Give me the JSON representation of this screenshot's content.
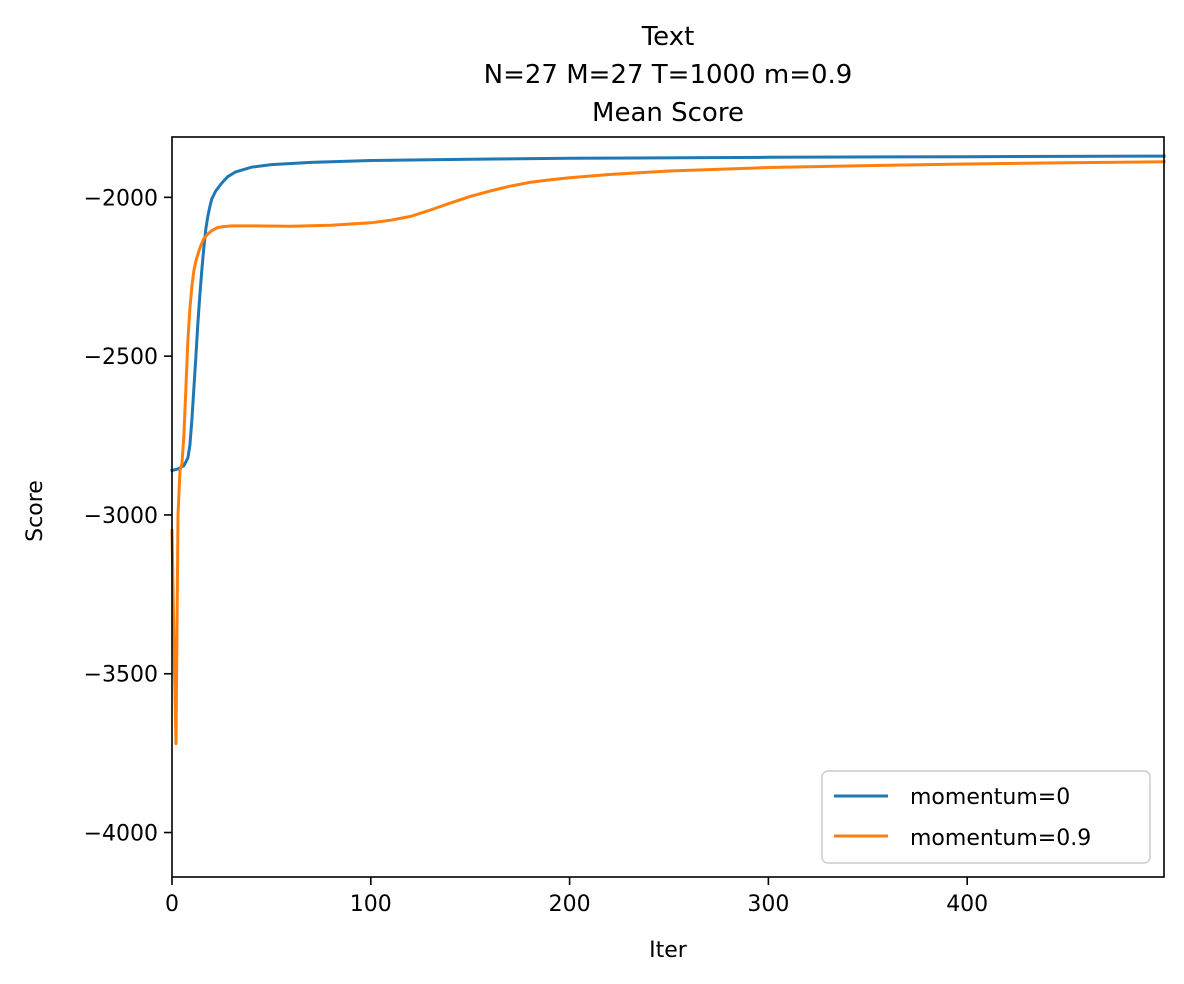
{
  "chart_data": {
    "type": "line",
    "title": [
      "Text",
      "N=27 M=27 T=1000 m=0.9",
      "Mean Score"
    ],
    "xlabel": "Iter",
    "ylabel": "Score",
    "xlim": [
      0,
      499
    ],
    "ylim": [
      -4140,
      -1810
    ],
    "xticks": [
      0,
      100,
      200,
      300,
      400
    ],
    "yticks": [
      -2000,
      -2500,
      -3000,
      -3500,
      -4000
    ],
    "xtick_labels": [
      "0",
      "100",
      "200",
      "300",
      "400"
    ],
    "ytick_labels": [
      "−2000",
      "−2500",
      "−3000",
      "−3500",
      "−4000"
    ],
    "grid": false,
    "legend_position": "lower right",
    "series": [
      {
        "name": "momentum=0",
        "color": "#1f77b4",
        "x": [
          0,
          3,
          6,
          8,
          9,
          10,
          11,
          12,
          13,
          14,
          15,
          16,
          17,
          18,
          19,
          20,
          22,
          25,
          28,
          32,
          40,
          50,
          70,
          100,
          150,
          200,
          300,
          400,
          499
        ],
        "y": [
          -2860,
          -2855,
          -2845,
          -2820,
          -2780,
          -2700,
          -2600,
          -2500,
          -2400,
          -2310,
          -2230,
          -2160,
          -2100,
          -2060,
          -2030,
          -2005,
          -1980,
          -1955,
          -1935,
          -1920,
          -1905,
          -1897,
          -1890,
          -1884,
          -1880,
          -1877,
          -1874,
          -1872,
          -1870
        ]
      },
      {
        "name": "momentum=0.9",
        "color": "#ff7f0e",
        "x": [
          0,
          1,
          2,
          3,
          4,
          5,
          6,
          7,
          8,
          9,
          10,
          11,
          12,
          14,
          16,
          18,
          20,
          23,
          26,
          30,
          40,
          60,
          80,
          100,
          110,
          120,
          130,
          140,
          150,
          160,
          170,
          180,
          190,
          200,
          220,
          250,
          300,
          350,
          400,
          450,
          499
        ],
        "y": [
          -3050,
          -3400,
          -3720,
          -3000,
          -2860,
          -2840,
          -2750,
          -2600,
          -2450,
          -2350,
          -2280,
          -2230,
          -2200,
          -2160,
          -2130,
          -2115,
          -2105,
          -2095,
          -2092,
          -2090,
          -2090,
          -2091,
          -2088,
          -2080,
          -2072,
          -2060,
          -2040,
          -2018,
          -1997,
          -1980,
          -1965,
          -1953,
          -1945,
          -1938,
          -1928,
          -1917,
          -1906,
          -1900,
          -1895,
          -1891,
          -1888
        ]
      }
    ]
  }
}
